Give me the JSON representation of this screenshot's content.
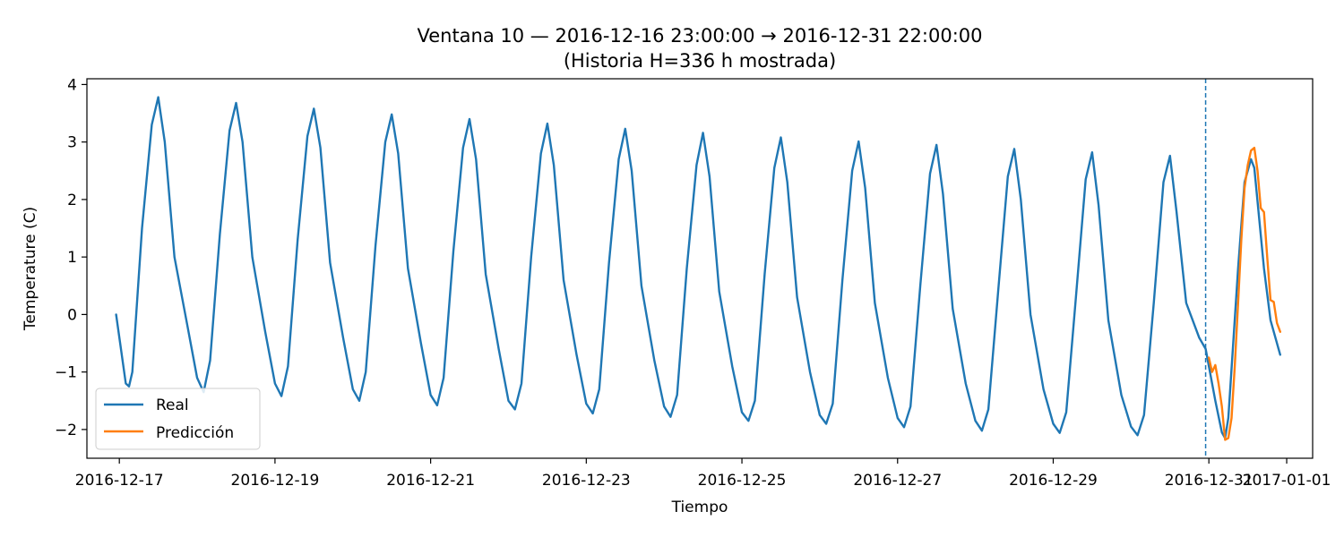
{
  "chart_data": {
    "type": "line",
    "title": "Ventana 10 — 2016-12-16 23:00:00 → 2016-12-31 22:00:00",
    "subtitle": "(Historia H=336 h mostrada)",
    "xlabel": "Tiempo",
    "ylabel": "Temperature (C)",
    "xlim": [
      "2016-12-16 14:00",
      "2017-01-01 08:00"
    ],
    "ylim": [
      -2.5,
      4.1
    ],
    "x_ticks": [
      "2016-12-17",
      "2016-12-19",
      "2016-12-21",
      "2016-12-23",
      "2016-12-25",
      "2016-12-27",
      "2016-12-29",
      "2016-12-31",
      "2017-01-01"
    ],
    "y_ticks": [
      -2,
      -1,
      0,
      1,
      2,
      3,
      4
    ],
    "grid": false,
    "legend_position": "lower-left",
    "vline": {
      "x": "2016-12-30 23:00",
      "style": "dashed",
      "color": "#1f77b4"
    },
    "series": [
      {
        "name": "Real",
        "color": "#1f77b4",
        "points": [
          [
            "2016-12-16 23:00",
            0.0
          ],
          [
            "2016-12-17 02:00",
            -1.2
          ],
          [
            "2016-12-17 03:00",
            -1.25
          ],
          [
            "2016-12-17 04:00",
            -1.0
          ],
          [
            "2016-12-17 07:00",
            1.5
          ],
          [
            "2016-12-17 10:00",
            3.3
          ],
          [
            "2016-12-17 12:00",
            3.78
          ],
          [
            "2016-12-17 14:00",
            3.0
          ],
          [
            "2016-12-17 17:00",
            1.0
          ],
          [
            "2016-12-17 21:00",
            -0.2
          ],
          [
            "2016-12-18 00:00",
            -1.1
          ],
          [
            "2016-12-18 02:00",
            -1.35
          ],
          [
            "2016-12-18 04:00",
            -0.8
          ],
          [
            "2016-12-18 07:00",
            1.4
          ],
          [
            "2016-12-18 10:00",
            3.2
          ],
          [
            "2016-12-18 12:00",
            3.68
          ],
          [
            "2016-12-18 14:00",
            3.0
          ],
          [
            "2016-12-18 17:00",
            1.0
          ],
          [
            "2016-12-18 21:00",
            -0.3
          ],
          [
            "2016-12-19 00:00",
            -1.2
          ],
          [
            "2016-12-19 02:00",
            -1.42
          ],
          [
            "2016-12-19 04:00",
            -0.9
          ],
          [
            "2016-12-19 07:00",
            1.3
          ],
          [
            "2016-12-19 10:00",
            3.1
          ],
          [
            "2016-12-19 12:00",
            3.58
          ],
          [
            "2016-12-19 14:00",
            2.9
          ],
          [
            "2016-12-19 17:00",
            0.9
          ],
          [
            "2016-12-19 21:00",
            -0.4
          ],
          [
            "2016-12-20 00:00",
            -1.3
          ],
          [
            "2016-12-20 02:00",
            -1.5
          ],
          [
            "2016-12-20 04:00",
            -1.0
          ],
          [
            "2016-12-20 07:00",
            1.2
          ],
          [
            "2016-12-20 10:00",
            3.0
          ],
          [
            "2016-12-20 12:00",
            3.48
          ],
          [
            "2016-12-20 14:00",
            2.8
          ],
          [
            "2016-12-20 17:00",
            0.8
          ],
          [
            "2016-12-20 21:00",
            -0.5
          ],
          [
            "2016-12-21 00:00",
            -1.4
          ],
          [
            "2016-12-21 02:00",
            -1.58
          ],
          [
            "2016-12-21 04:00",
            -1.1
          ],
          [
            "2016-12-21 07:00",
            1.1
          ],
          [
            "2016-12-21 10:00",
            2.9
          ],
          [
            "2016-12-21 12:00",
            3.4
          ],
          [
            "2016-12-21 14:00",
            2.7
          ],
          [
            "2016-12-21 17:00",
            0.7
          ],
          [
            "2016-12-21 21:00",
            -0.6
          ],
          [
            "2016-12-22 00:00",
            -1.5
          ],
          [
            "2016-12-22 02:00",
            -1.65
          ],
          [
            "2016-12-22 04:00",
            -1.2
          ],
          [
            "2016-12-22 07:00",
            1.0
          ],
          [
            "2016-12-22 10:00",
            2.8
          ],
          [
            "2016-12-22 12:00",
            3.32
          ],
          [
            "2016-12-22 14:00",
            2.6
          ],
          [
            "2016-12-22 17:00",
            0.6
          ],
          [
            "2016-12-22 21:00",
            -0.7
          ],
          [
            "2016-12-23 00:00",
            -1.55
          ],
          [
            "2016-12-23 02:00",
            -1.72
          ],
          [
            "2016-12-23 04:00",
            -1.3
          ],
          [
            "2016-12-23 07:00",
            0.9
          ],
          [
            "2016-12-23 10:00",
            2.7
          ],
          [
            "2016-12-23 12:00",
            3.23
          ],
          [
            "2016-12-23 14:00",
            2.5
          ],
          [
            "2016-12-23 17:00",
            0.5
          ],
          [
            "2016-12-23 21:00",
            -0.8
          ],
          [
            "2016-12-24 00:00",
            -1.6
          ],
          [
            "2016-12-24 02:00",
            -1.78
          ],
          [
            "2016-12-24 04:00",
            -1.4
          ],
          [
            "2016-12-24 07:00",
            0.8
          ],
          [
            "2016-12-24 10:00",
            2.6
          ],
          [
            "2016-12-24 12:00",
            3.16
          ],
          [
            "2016-12-24 14:00",
            2.4
          ],
          [
            "2016-12-24 17:00",
            0.4
          ],
          [
            "2016-12-24 21:00",
            -0.9
          ],
          [
            "2016-12-25 00:00",
            -1.7
          ],
          [
            "2016-12-25 02:00",
            -1.85
          ],
          [
            "2016-12-25 04:00",
            -1.5
          ],
          [
            "2016-12-25 07:00",
            0.7
          ],
          [
            "2016-12-25 10:00",
            2.55
          ],
          [
            "2016-12-25 12:00",
            3.08
          ],
          [
            "2016-12-25 14:00",
            2.3
          ],
          [
            "2016-12-25 17:00",
            0.3
          ],
          [
            "2016-12-25 21:00",
            -1.0
          ],
          [
            "2016-12-26 00:00",
            -1.75
          ],
          [
            "2016-12-26 02:00",
            -1.9
          ],
          [
            "2016-12-26 04:00",
            -1.55
          ],
          [
            "2016-12-26 07:00",
            0.6
          ],
          [
            "2016-12-26 10:00",
            2.5
          ],
          [
            "2016-12-26 12:00",
            3.01
          ],
          [
            "2016-12-26 14:00",
            2.2
          ],
          [
            "2016-12-26 17:00",
            0.2
          ],
          [
            "2016-12-26 21:00",
            -1.1
          ],
          [
            "2016-12-27 00:00",
            -1.8
          ],
          [
            "2016-12-27 02:00",
            -1.96
          ],
          [
            "2016-12-27 04:00",
            -1.6
          ],
          [
            "2016-12-27 07:00",
            0.5
          ],
          [
            "2016-12-27 10:00",
            2.45
          ],
          [
            "2016-12-27 12:00",
            2.95
          ],
          [
            "2016-12-27 14:00",
            2.1
          ],
          [
            "2016-12-27 17:00",
            0.1
          ],
          [
            "2016-12-27 21:00",
            -1.2
          ],
          [
            "2016-12-28 00:00",
            -1.85
          ],
          [
            "2016-12-28 02:00",
            -2.02
          ],
          [
            "2016-12-28 04:00",
            -1.65
          ],
          [
            "2016-12-28 07:00",
            0.4
          ],
          [
            "2016-12-28 10:00",
            2.4
          ],
          [
            "2016-12-28 12:00",
            2.88
          ],
          [
            "2016-12-28 14:00",
            2.0
          ],
          [
            "2016-12-28 17:00",
            0.0
          ],
          [
            "2016-12-28 21:00",
            -1.3
          ],
          [
            "2016-12-29 00:00",
            -1.9
          ],
          [
            "2016-12-29 02:00",
            -2.06
          ],
          [
            "2016-12-29 04:00",
            -1.7
          ],
          [
            "2016-12-29 07:00",
            0.3
          ],
          [
            "2016-12-29 10:00",
            2.35
          ],
          [
            "2016-12-29 12:00",
            2.82
          ],
          [
            "2016-12-29 14:00",
            1.9
          ],
          [
            "2016-12-29 17:00",
            -0.1
          ],
          [
            "2016-12-29 21:00",
            -1.4
          ],
          [
            "2016-12-30 00:00",
            -1.95
          ],
          [
            "2016-12-30 02:00",
            -2.1
          ],
          [
            "2016-12-30 04:00",
            -1.75
          ],
          [
            "2016-12-30 07:00",
            0.2
          ],
          [
            "2016-12-30 10:00",
            2.3
          ],
          [
            "2016-12-30 12:00",
            2.76
          ],
          [
            "2016-12-30 14:00",
            1.8
          ],
          [
            "2016-12-30 17:00",
            0.2
          ],
          [
            "2016-12-30 21:00",
            -0.4
          ],
          [
            "2016-12-30 23:00",
            -0.6
          ],
          [
            "2016-12-31 02:00",
            -1.5
          ],
          [
            "2016-12-31 04:00",
            -2.05
          ],
          [
            "2016-12-31 05:00",
            -2.15
          ],
          [
            "2016-12-31 06:00",
            -1.8
          ],
          [
            "2016-12-31 09:00",
            0.8
          ],
          [
            "2016-12-31 11:00",
            2.3
          ],
          [
            "2016-12-31 13:00",
            2.7
          ],
          [
            "2016-12-31 14:00",
            2.55
          ],
          [
            "2016-12-31 17:00",
            0.8
          ],
          [
            "2016-12-31 19:00",
            -0.1
          ],
          [
            "2016-12-31 22:00",
            -0.7
          ]
        ]
      },
      {
        "name": "Predicción",
        "color": "#ff7f0e",
        "points": [
          [
            "2016-12-31 00:00",
            -0.75
          ],
          [
            "2016-12-31 01:00",
            -1.0
          ],
          [
            "2016-12-31 02:00",
            -0.88
          ],
          [
            "2016-12-31 03:00",
            -1.2
          ],
          [
            "2016-12-31 04:00",
            -1.6
          ],
          [
            "2016-12-31 05:00",
            -2.18
          ],
          [
            "2016-12-31 06:00",
            -2.15
          ],
          [
            "2016-12-31 07:00",
            -1.8
          ],
          [
            "2016-12-31 08:00",
            -0.9
          ],
          [
            "2016-12-31 09:00",
            0.2
          ],
          [
            "2016-12-31 10:00",
            1.3
          ],
          [
            "2016-12-31 11:00",
            2.2
          ],
          [
            "2016-12-31 12:00",
            2.6
          ],
          [
            "2016-12-31 13:00",
            2.85
          ],
          [
            "2016-12-31 14:00",
            2.9
          ],
          [
            "2016-12-31 15:00",
            2.5
          ],
          [
            "2016-12-31 16:00",
            1.85
          ],
          [
            "2016-12-31 17:00",
            1.78
          ],
          [
            "2016-12-31 18:00",
            1.0
          ],
          [
            "2016-12-31 19:00",
            0.25
          ],
          [
            "2016-12-31 20:00",
            0.22
          ],
          [
            "2016-12-31 21:00",
            -0.15
          ],
          [
            "2016-12-31 22:00",
            -0.3
          ]
        ]
      }
    ]
  }
}
